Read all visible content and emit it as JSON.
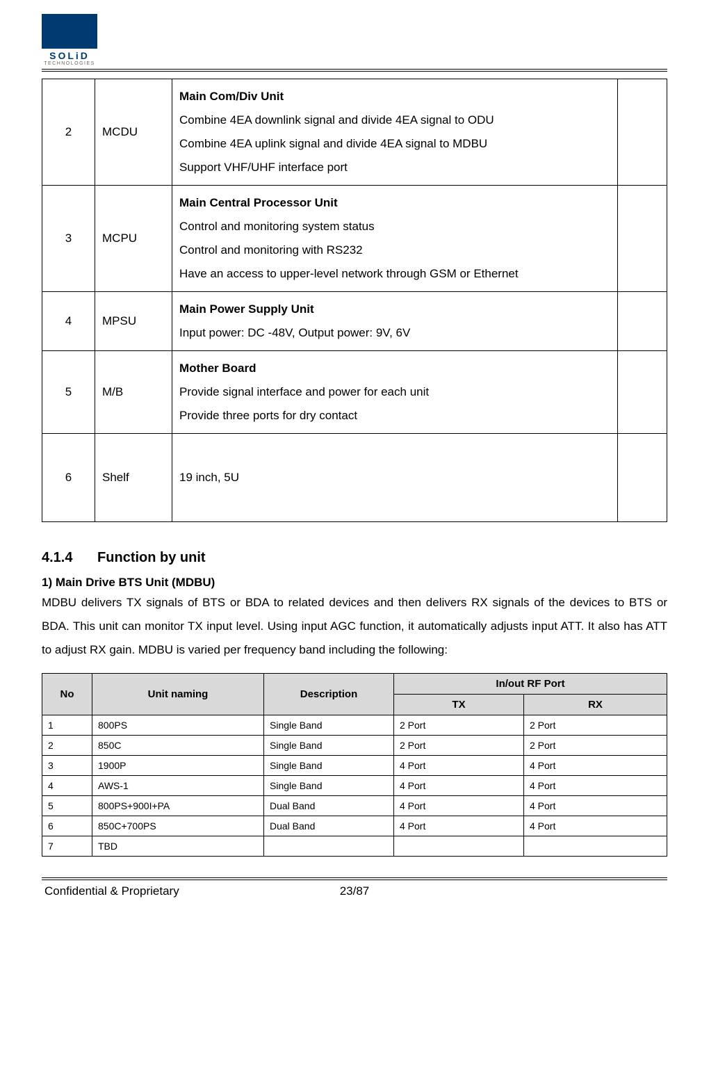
{
  "logo": {
    "brand": "SOLiD",
    "sub": "TECHNOLOGIES"
  },
  "desc_table": {
    "rows": [
      {
        "no": "2",
        "name": "MCDU",
        "title": "Main Com/Div Unit",
        "lines": [
          "Combine 4EA downlink signal and divide 4EA signal to ODU",
          "Combine 4EA uplink signal and divide 4EA signal to MDBU",
          "Support VHF/UHF interface port"
        ]
      },
      {
        "no": "3",
        "name": "MCPU",
        "title": "Main Central Processor Unit",
        "lines": [
          "Control and monitoring system status",
          "Control and monitoring with RS232",
          "Have an access to upper-level network through GSM or Ethernet"
        ],
        "justify_idx": [
          3
        ]
      },
      {
        "no": "4",
        "name": "MPSU",
        "title": "Main Power Supply Unit",
        "lines": [
          "Input power: DC -48V, Output power: 9V, 6V"
        ]
      },
      {
        "no": "5",
        "name": "M/B",
        "title": "Mother Board",
        "lines": [
          "Provide signal interface and power for each unit",
          "Provide three ports for dry contact"
        ]
      },
      {
        "no": "6",
        "name": "Shelf",
        "title": "",
        "lines": [
          "19 inch, 5U"
        ],
        "tall": true
      }
    ]
  },
  "section": {
    "number": "4.1.4",
    "title": "Function by unit"
  },
  "mdbu": {
    "heading": "1) Main Drive BTS Unit (MDBU)",
    "paragraph": "MDBU delivers TX signals of BTS or BDA to related devices and then delivers RX signals of the devices to BTS or BDA. This unit can monitor TX input level. Using input AGC function, it automatically adjusts input ATT. It also has ATT to adjust RX gain. MDBU is varied per frequency band including the following:"
  },
  "rf_table": {
    "headers": {
      "no": "No",
      "unit": "Unit naming",
      "desc": "Description",
      "port": "In/out RF Port",
      "tx": "TX",
      "rx": "RX"
    },
    "rows": [
      {
        "no": "1",
        "unit": "800PS",
        "desc": "Single Band",
        "tx": "2 Port",
        "rx": "2 Port"
      },
      {
        "no": "2",
        "unit": "850C",
        "desc": "Single Band",
        "tx": "2 Port",
        "rx": "2 Port"
      },
      {
        "no": "3",
        "unit": "1900P",
        "desc": "Single Band",
        "tx": "4 Port",
        "rx": "4 Port"
      },
      {
        "no": "4",
        "unit": "AWS-1",
        "desc": "Single Band",
        "tx": "4 Port",
        "rx": "4 Port"
      },
      {
        "no": "5",
        "unit": "800PS+900I+PA",
        "desc": "Dual Band",
        "tx": "4 Port",
        "rx": "4 Port"
      },
      {
        "no": "6",
        "unit": "850C+700PS",
        "desc": "Dual Band",
        "tx": "4 Port",
        "rx": "4 Port"
      },
      {
        "no": "7",
        "unit": "TBD",
        "desc": "",
        "tx": "",
        "rx": ""
      }
    ]
  },
  "footer": {
    "left": "Confidential & Proprietary",
    "center": "23/87",
    "right": ""
  }
}
